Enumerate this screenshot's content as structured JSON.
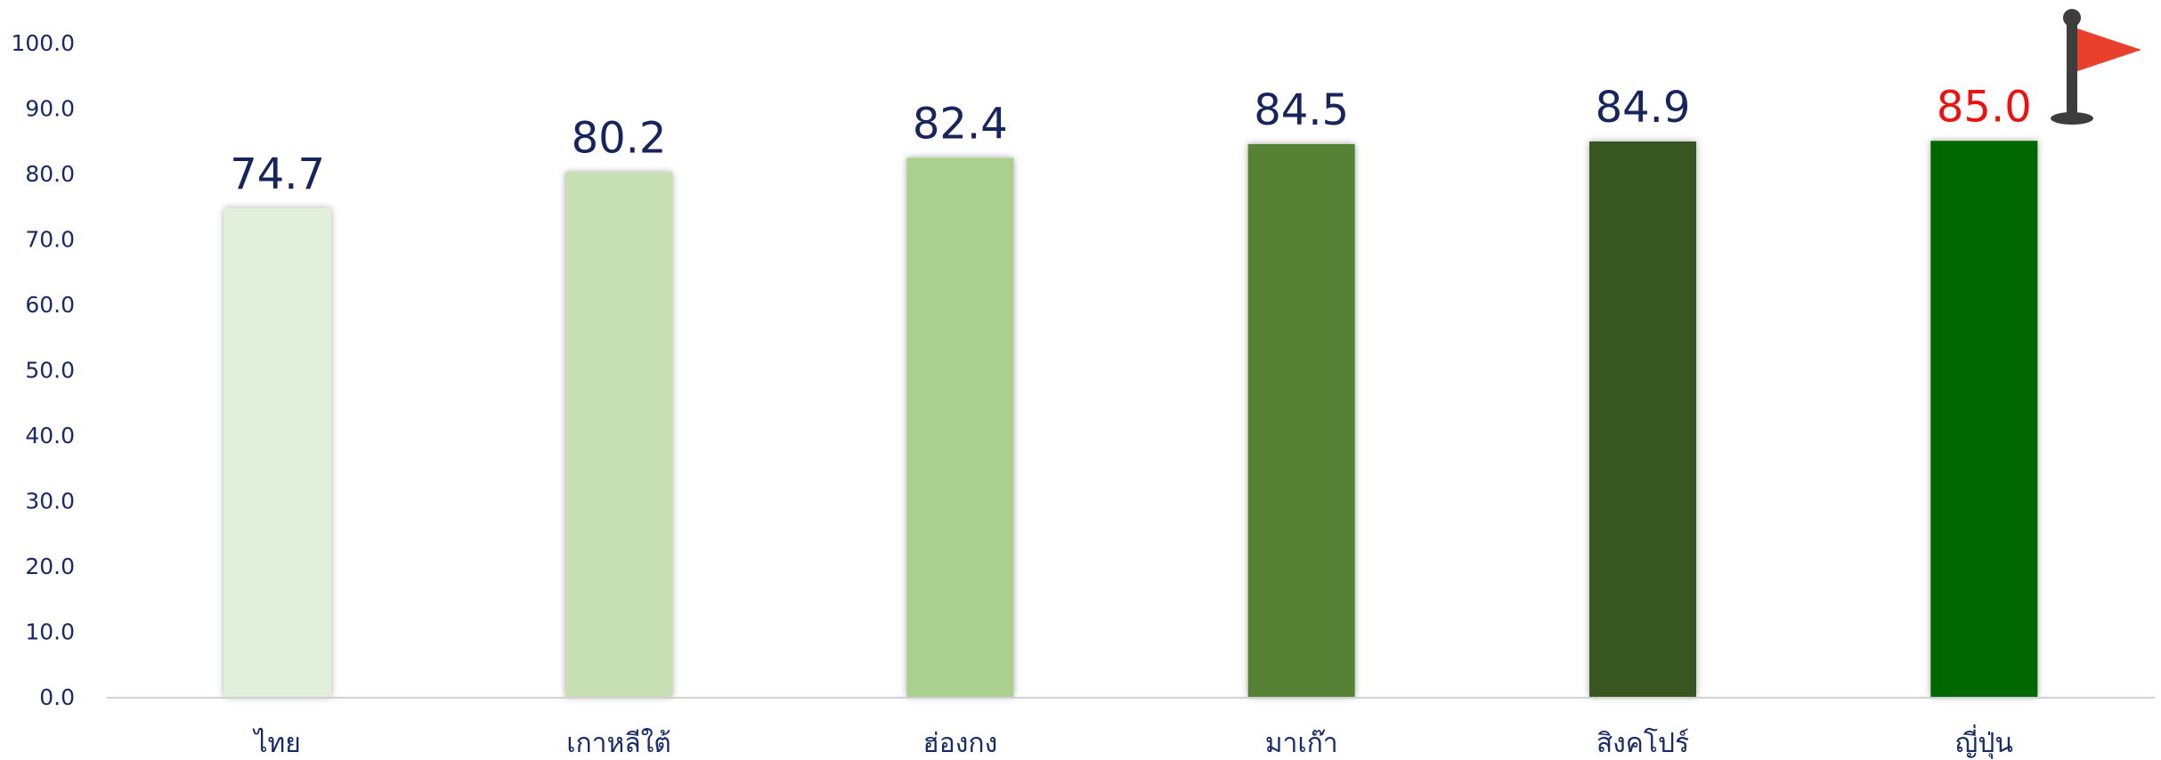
{
  "chart_data": {
    "type": "bar",
    "title": "",
    "xlabel": "",
    "ylabel": "",
    "ylim": [
      0,
      100
    ],
    "yticks": [
      "0.0",
      "10.0",
      "20.0",
      "30.0",
      "40.0",
      "50.0",
      "60.0",
      "70.0",
      "80.0",
      "90.0",
      "100.0"
    ],
    "grid": false,
    "legend": "none",
    "categories": [
      "ไทย",
      "เกาหลีใต้",
      "ฮ่องกง",
      "มาเก๊า",
      "สิงคโปร์",
      "ญี่ปุ่น"
    ],
    "values": [
      74.7,
      80.2,
      82.4,
      84.5,
      84.9,
      85.0
    ],
    "data_labels": [
      "74.7",
      "80.2",
      "82.4",
      "84.5",
      "84.9",
      "85.0"
    ],
    "bar_colors": [
      "#e2efda",
      "#c6e0b4",
      "#a9d08e",
      "#548235",
      "#375623",
      "#006600"
    ],
    "label_colors": [
      "#17255e",
      "#17255e",
      "#17255e",
      "#17255e",
      "#17255e",
      "#ee1111"
    ],
    "axis_color": "#d0d0d0",
    "icons": {
      "flag": {
        "name": "flag-icon",
        "pole_color": "#3d3d3d",
        "flag_color": "#e8402a",
        "marks_category": "ญี่ปุ่น"
      }
    }
  }
}
